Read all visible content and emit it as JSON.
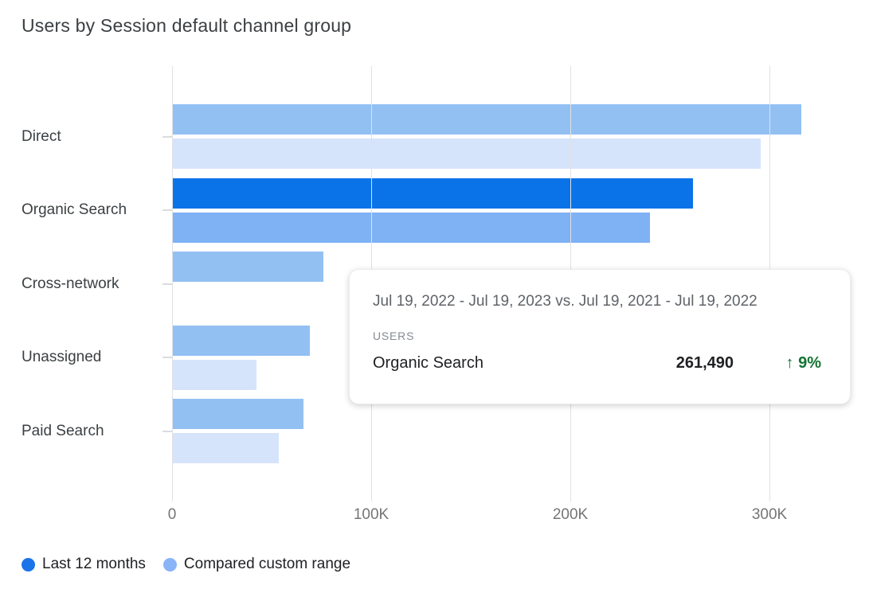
{
  "title": "Users by Session default channel group",
  "chart_data": {
    "type": "bar",
    "orientation": "horizontal",
    "title": "Users by Session default channel group",
    "metric": "Users",
    "categories": [
      "Direct",
      "Organic Search",
      "Cross-network",
      "Unassigned",
      "Paid Search"
    ],
    "series": [
      {
        "name": "Last 12 months",
        "values": [
          316000,
          261490,
          76000,
          69000,
          66000
        ]
      },
      {
        "name": "Compared custom range",
        "values": [
          295500,
          239900,
          0,
          42500,
          53600
        ]
      }
    ],
    "highlighted_category": "Organic Search",
    "x_ticks": [
      {
        "label": "0",
        "value": 0
      },
      {
        "label": "100K",
        "value": 100000
      },
      {
        "label": "200K",
        "value": 200000
      },
      {
        "label": "300K",
        "value": 300000
      }
    ],
    "xlim": [
      0,
      350000
    ],
    "grid": true,
    "legend_position": "bottom"
  },
  "tooltip": {
    "date_range": "Jul 19, 2022 - Jul 19, 2023 vs. Jul 19, 2021 - Jul 19, 2022",
    "metric_label": "USERS",
    "category": "Organic Search",
    "value": "261,490",
    "change_arrow": "↑",
    "change_percent": "9%",
    "change_direction": "up"
  },
  "legend": {
    "items": [
      {
        "label": "Last 12 months",
        "color": "#1a73e8"
      },
      {
        "label": "Compared custom range",
        "color": "#8ab4f8"
      }
    ]
  },
  "colors": {
    "bar_active_primary": "#0b73e8",
    "bar_active_compare": "#7fb1f5",
    "bar_dim_primary": "#92c0f3",
    "bar_dim_compare": "#d6e4fb",
    "gridline": "#e0e1e3",
    "category_tick": "#dadce0",
    "title_text": "#3c4043",
    "category_text": "#3c4043",
    "axis_text": "#757575",
    "change_positive": "#137333"
  }
}
